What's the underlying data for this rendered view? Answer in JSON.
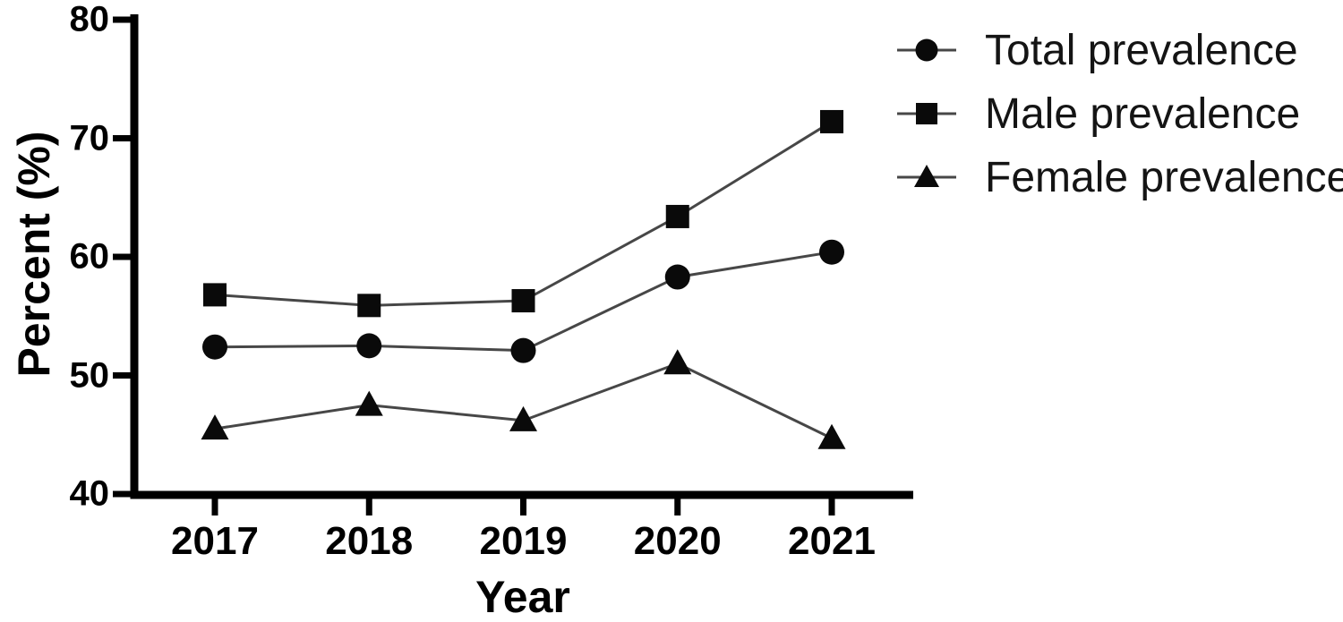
{
  "figure": {
    "background": "#ffffff",
    "axis_color": "#000000",
    "line_color": "#474747",
    "marker_color": "#0a0a0a",
    "text_color": "#000000"
  },
  "chart_data": {
    "type": "line",
    "title": "",
    "xlabel": "Year",
    "ylabel": "Percent (%)",
    "categories": [
      "2017",
      "2018",
      "2019",
      "2020",
      "2021"
    ],
    "ylim": [
      40,
      80
    ],
    "yticks": [
      40,
      50,
      60,
      70,
      80
    ],
    "grid": false,
    "legend_position": "top-right",
    "series": [
      {
        "name": "Total prevalence",
        "marker": "circle",
        "values": [
          52.4,
          52.5,
          52.1,
          58.3,
          60.4
        ]
      },
      {
        "name": "Male prevalence",
        "marker": "square",
        "values": [
          56.8,
          55.9,
          56.3,
          63.4,
          71.4
        ]
      },
      {
        "name": "Female prevalence",
        "marker": "triangle",
        "values": [
          45.5,
          47.5,
          46.2,
          51.0,
          44.7
        ]
      }
    ]
  }
}
